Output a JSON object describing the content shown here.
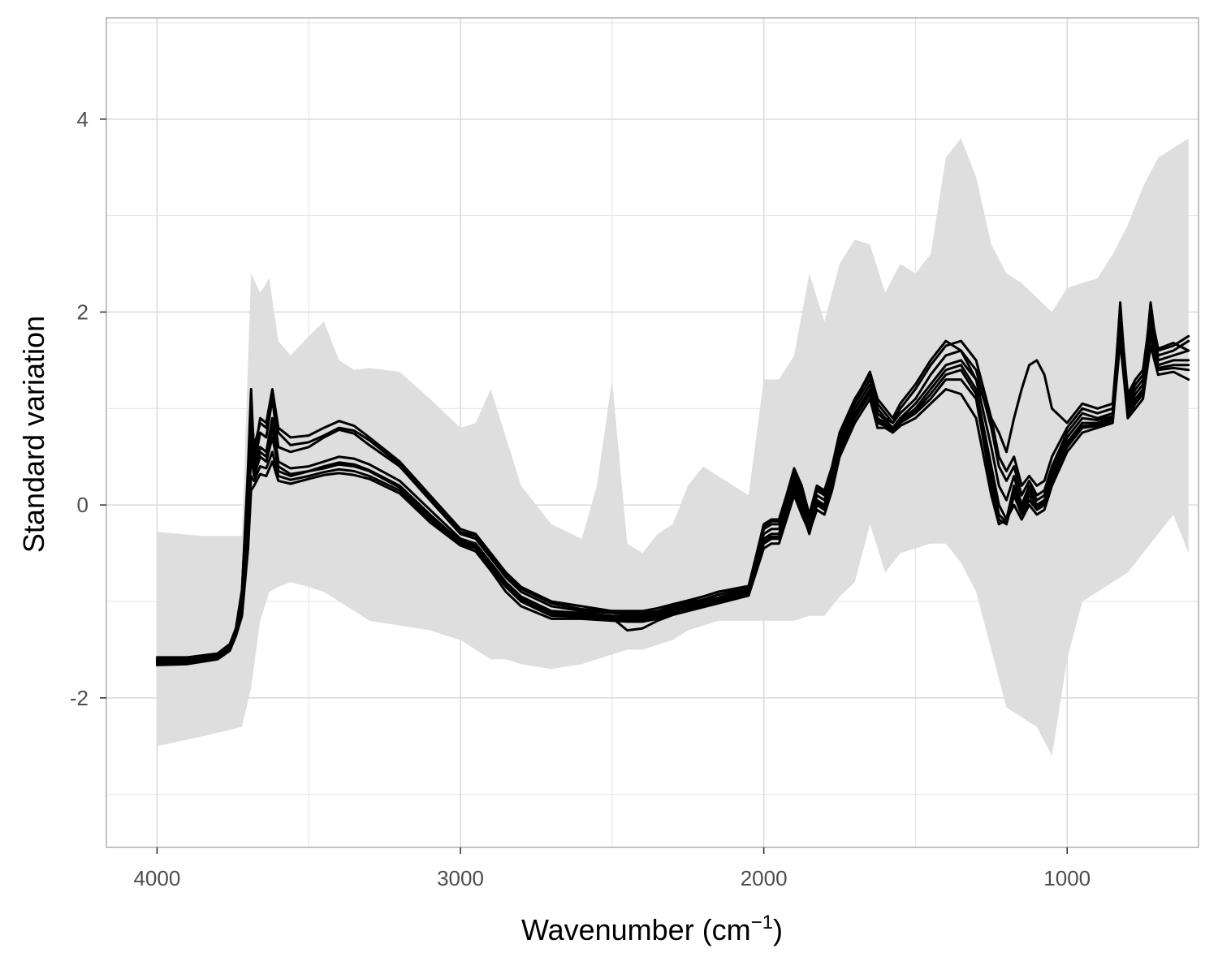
{
  "chart_data": {
    "type": "line",
    "title": "",
    "xlabel": "Wavenumber (cm",
    "xlabel_sup": "−1",
    "xlabel_end": ")",
    "ylabel": "Standard variation",
    "xlim": [
      4167,
      567
    ],
    "ylim": [
      -3.55,
      5.05
    ],
    "x_reversed": true,
    "x_ticks": [
      4000,
      3000,
      2000,
      1000
    ],
    "x_tick_labels": [
      "4000",
      "3000",
      "2000",
      "1000"
    ],
    "y_ticks": [
      4,
      2,
      0,
      -2
    ],
    "y_tick_labels": [
      "4",
      "2",
      "0",
      "-2"
    ],
    "grid": true,
    "colors": {
      "band": "#dedede",
      "line": "#000000",
      "grid": "#e5e5e5",
      "frame": "#b3b3b3"
    },
    "band": {
      "x": [
        4000,
        3850,
        3720,
        3690,
        3660,
        3630,
        3600,
        3560,
        3500,
        3450,
        3400,
        3350,
        3300,
        3200,
        3100,
        3000,
        2950,
        2900,
        2850,
        2800,
        2700,
        2600,
        2550,
        2500,
        2450,
        2400,
        2350,
        2300,
        2250,
        2200,
        2150,
        2100,
        2050,
        2000,
        1950,
        1900,
        1850,
        1800,
        1750,
        1700,
        1650,
        1600,
        1550,
        1500,
        1450,
        1400,
        1350,
        1300,
        1250,
        1200,
        1150,
        1100,
        1050,
        1000,
        950,
        900,
        850,
        800,
        750,
        700,
        650,
        600
      ],
      "upper": [
        -0.28,
        -0.32,
        -0.32,
        2.4,
        2.2,
        2.35,
        1.7,
        1.55,
        1.75,
        1.9,
        1.5,
        1.4,
        1.42,
        1.38,
        1.1,
        0.8,
        0.85,
        1.2,
        0.7,
        0.2,
        -0.2,
        -0.35,
        0.2,
        1.3,
        -0.4,
        -0.5,
        -0.3,
        -0.2,
        0.2,
        0.4,
        0.3,
        0.2,
        0.1,
        1.3,
        1.3,
        1.55,
        2.4,
        1.9,
        2.5,
        2.75,
        2.7,
        2.2,
        2.5,
        2.4,
        2.6,
        3.6,
        3.8,
        3.4,
        2.7,
        2.4,
        2.3,
        2.15,
        2.0,
        2.25,
        2.3,
        2.35,
        2.6,
        2.9,
        3.3,
        3.6,
        3.7,
        3.8
      ],
      "lower": [
        -2.5,
        -2.4,
        -2.3,
        -1.9,
        -1.2,
        -0.9,
        -0.85,
        -0.8,
        -0.85,
        -0.9,
        -1.0,
        -1.1,
        -1.2,
        -1.25,
        -1.3,
        -1.4,
        -1.5,
        -1.6,
        -1.6,
        -1.65,
        -1.7,
        -1.65,
        -1.6,
        -1.55,
        -1.5,
        -1.5,
        -1.45,
        -1.4,
        -1.3,
        -1.25,
        -1.2,
        -1.2,
        -1.2,
        -1.2,
        -1.2,
        -1.2,
        -1.15,
        -1.15,
        -0.95,
        -0.8,
        -0.2,
        -0.7,
        -0.5,
        -0.45,
        -0.4,
        -0.4,
        -0.6,
        -0.9,
        -1.5,
        -2.1,
        -2.2,
        -2.3,
        -2.6,
        -1.6,
        -1.0,
        -0.9,
        -0.8,
        -0.7,
        -0.5,
        -0.3,
        -0.1,
        -0.5
      ]
    },
    "x": [
      4000,
      3900,
      3800,
      3760,
      3740,
      3720,
      3700,
      3690,
      3680,
      3660,
      3640,
      3620,
      3600,
      3560,
      3500,
      3450,
      3400,
      3350,
      3300,
      3200,
      3100,
      3000,
      2950,
      2900,
      2850,
      2800,
      2700,
      2600,
      2500,
      2450,
      2400,
      2350,
      2300,
      2250,
      2200,
      2150,
      2100,
      2050,
      2000,
      1975,
      1950,
      1925,
      1900,
      1875,
      1850,
      1825,
      1800,
      1775,
      1750,
      1700,
      1650,
      1625,
      1600,
      1575,
      1550,
      1500,
      1450,
      1400,
      1350,
      1300,
      1250,
      1225,
      1200,
      1175,
      1150,
      1125,
      1100,
      1075,
      1050,
      1000,
      950,
      900,
      850,
      825,
      800,
      775,
      750,
      725,
      700,
      650,
      600
    ],
    "series": [
      {
        "values": [
          -1.6,
          -1.6,
          -1.55,
          -1.45,
          -1.3,
          -0.9,
          0.4,
          1.2,
          0.5,
          0.9,
          0.85,
          1.2,
          0.8,
          0.7,
          0.72,
          0.8,
          0.87,
          0.82,
          0.7,
          0.45,
          0.1,
          -0.25,
          -0.3,
          -0.5,
          -0.7,
          -0.85,
          -1.0,
          -1.05,
          -1.1,
          -1.12,
          -1.12,
          -1.1,
          -1.05,
          -1.0,
          -0.95,
          -0.9,
          -0.88,
          -0.85,
          -0.2,
          -0.15,
          -0.15,
          0.1,
          0.38,
          0.2,
          -0.1,
          0.2,
          0.15,
          0.4,
          0.75,
          1.1,
          1.35,
          1.05,
          0.95,
          0.85,
          1.0,
          1.2,
          1.45,
          1.65,
          1.7,
          1.5,
          0.9,
          0.5,
          0.35,
          0.5,
          0.2,
          0.3,
          0.2,
          0.25,
          0.5,
          0.8,
          1.0,
          0.95,
          1.0,
          1.7,
          1.1,
          1.25,
          1.35,
          1.8,
          1.6,
          1.65,
          1.75
        ]
      },
      {
        "values": [
          -1.62,
          -1.61,
          -1.56,
          -1.47,
          -1.32,
          -0.95,
          0.2,
          0.9,
          0.4,
          0.75,
          0.7,
          1.1,
          0.6,
          0.55,
          0.6,
          0.7,
          0.78,
          0.74,
          0.62,
          0.4,
          0.05,
          -0.3,
          -0.35,
          -0.55,
          -0.75,
          -0.9,
          -1.05,
          -1.1,
          -1.12,
          -1.13,
          -1.13,
          -1.1,
          -1.06,
          -1.02,
          -0.98,
          -0.93,
          -0.9,
          -0.87,
          -0.25,
          -0.2,
          -0.2,
          0.05,
          0.3,
          0.12,
          -0.15,
          0.15,
          0.1,
          0.35,
          0.7,
          1.05,
          1.3,
          1.0,
          0.9,
          0.85,
          0.95,
          1.1,
          1.35,
          1.55,
          1.6,
          1.4,
          0.8,
          0.4,
          0.25,
          0.4,
          0.1,
          0.25,
          0.1,
          0.15,
          0.4,
          0.75,
          0.95,
          0.9,
          0.95,
          1.9,
          1.05,
          1.2,
          1.3,
          1.95,
          1.55,
          1.6,
          1.7
        ]
      },
      {
        "values": [
          -1.63,
          -1.62,
          -1.57,
          -1.48,
          -1.33,
          -1.0,
          0.1,
          0.7,
          0.35,
          0.6,
          0.55,
          0.9,
          0.45,
          0.38,
          0.4,
          0.45,
          0.5,
          0.48,
          0.42,
          0.25,
          -0.05,
          -0.35,
          -0.4,
          -0.6,
          -0.8,
          -0.95,
          -1.1,
          -1.12,
          -1.15,
          -1.15,
          -1.15,
          -1.12,
          -1.08,
          -1.04,
          -1.0,
          -0.96,
          -0.92,
          -0.88,
          -0.3,
          -0.25,
          -0.25,
          0.0,
          0.25,
          0.05,
          -0.2,
          0.1,
          0.05,
          0.3,
          0.65,
          1.0,
          1.25,
          0.95,
          0.88,
          0.8,
          0.9,
          1.05,
          1.25,
          1.45,
          1.5,
          1.3,
          0.6,
          0.2,
          0.05,
          0.3,
          0.0,
          0.2,
          0.05,
          0.1,
          0.35,
          0.7,
          0.9,
          0.88,
          0.92,
          2.1,
          1.0,
          1.15,
          1.25,
          2.1,
          1.5,
          1.55,
          1.6
        ]
      },
      {
        "values": [
          -1.64,
          -1.63,
          -1.58,
          -1.49,
          -1.34,
          -1.05,
          -0.1,
          0.5,
          0.3,
          0.5,
          0.45,
          0.7,
          0.4,
          0.32,
          0.35,
          0.4,
          0.44,
          0.42,
          0.36,
          0.2,
          -0.1,
          -0.38,
          -0.42,
          -0.62,
          -0.82,
          -0.97,
          -1.12,
          -1.14,
          -1.16,
          -1.17,
          -1.17,
          -1.14,
          -1.1,
          -1.06,
          -1.02,
          -0.98,
          -0.94,
          -0.9,
          -0.35,
          -0.3,
          -0.3,
          -0.05,
          0.2,
          0.0,
          -0.25,
          0.05,
          0.0,
          0.25,
          0.6,
          0.95,
          1.2,
          0.9,
          0.85,
          0.78,
          0.88,
          1.0,
          1.2,
          1.4,
          1.45,
          1.2,
          0.4,
          0.0,
          -0.15,
          0.2,
          -0.05,
          0.15,
          0.0,
          0.05,
          0.3,
          0.65,
          0.85,
          0.85,
          0.9,
          1.95,
          0.95,
          1.1,
          1.2,
          1.9,
          1.45,
          1.5,
          1.5
        ]
      },
      {
        "values": [
          -1.65,
          -1.64,
          -1.59,
          -1.5,
          -1.35,
          -1.1,
          -0.3,
          0.3,
          0.25,
          0.4,
          0.38,
          0.55,
          0.3,
          0.26,
          0.3,
          0.34,
          0.37,
          0.35,
          0.3,
          0.15,
          -0.15,
          -0.4,
          -0.45,
          -0.65,
          -0.85,
          -1.0,
          -1.15,
          -1.16,
          -1.18,
          -1.19,
          -1.19,
          -1.16,
          -1.12,
          -1.08,
          -1.04,
          -1.0,
          -0.96,
          -0.92,
          -0.4,
          -0.35,
          -0.35,
          -0.1,
          0.15,
          -0.05,
          -0.3,
          0.0,
          -0.05,
          0.2,
          0.55,
          0.9,
          1.15,
          0.85,
          0.82,
          0.76,
          0.85,
          0.95,
          1.1,
          1.3,
          1.3,
          1.1,
          0.2,
          -0.15,
          -0.2,
          0.1,
          -0.1,
          0.05,
          -0.05,
          0.0,
          0.25,
          0.6,
          0.8,
          0.82,
          0.88,
          1.8,
          0.92,
          1.05,
          1.15,
          1.75,
          1.4,
          1.42,
          1.4
        ]
      },
      {
        "values": [
          -1.66,
          -1.65,
          -1.6,
          -1.51,
          -1.36,
          -1.15,
          -0.45,
          0.15,
          0.2,
          0.32,
          0.3,
          0.45,
          0.25,
          0.22,
          0.27,
          0.31,
          0.33,
          0.31,
          0.27,
          0.12,
          -0.18,
          -0.42,
          -0.48,
          -0.68,
          -0.9,
          -1.05,
          -1.18,
          -1.18,
          -1.2,
          -1.21,
          -1.21,
          -1.18,
          -1.14,
          -1.1,
          -1.06,
          -1.02,
          -0.98,
          -0.94,
          -0.45,
          -0.4,
          -0.4,
          -0.15,
          0.1,
          -0.1,
          -0.28,
          -0.05,
          -0.1,
          0.15,
          0.5,
          0.85,
          1.1,
          0.8,
          0.8,
          0.75,
          0.82,
          0.9,
          1.05,
          1.2,
          1.15,
          0.9,
          0.1,
          -0.2,
          -0.15,
          0.0,
          -0.15,
          0.0,
          -0.1,
          -0.05,
          0.2,
          0.55,
          0.75,
          0.8,
          0.85,
          1.7,
          0.9,
          1.0,
          1.1,
          1.65,
          1.35,
          1.38,
          1.3
        ]
      },
      {
        "values": [
          -1.58,
          -1.58,
          -1.54,
          -1.44,
          -1.28,
          -0.88,
          0.3,
          1.0,
          0.6,
          0.85,
          0.8,
          1.15,
          0.75,
          0.62,
          0.65,
          0.72,
          0.8,
          0.77,
          0.67,
          0.42,
          0.08,
          -0.28,
          -0.32,
          -0.52,
          -0.72,
          -0.87,
          -1.02,
          -1.08,
          -1.1,
          -1.1,
          -1.1,
          -1.07,
          -1.03,
          -0.99,
          -0.95,
          -0.9,
          -0.87,
          -0.84,
          -0.22,
          -0.17,
          -0.17,
          0.08,
          0.35,
          0.18,
          -0.12,
          0.18,
          0.12,
          0.38,
          0.72,
          1.08,
          1.38,
          1.1,
          1.0,
          0.9,
          1.05,
          1.25,
          1.5,
          1.7,
          1.6,
          1.3,
          0.9,
          0.75,
          0.55,
          0.9,
          1.2,
          1.45,
          1.5,
          1.35,
          1.0,
          0.85,
          1.05,
          1.0,
          1.05,
          2.0,
          1.15,
          1.3,
          1.4,
          2.0,
          1.62,
          1.68,
          1.6
        ]
      },
      {
        "values": [
          -1.61,
          -1.6,
          -1.56,
          -1.46,
          -1.31,
          -0.97,
          0.05,
          0.6,
          0.32,
          0.55,
          0.5,
          0.8,
          0.35,
          0.3,
          0.35,
          0.38,
          0.42,
          0.4,
          0.35,
          0.18,
          -0.12,
          -0.37,
          -0.44,
          -0.64,
          -0.84,
          -0.99,
          -1.14,
          -1.15,
          -1.17,
          -1.3,
          -1.28,
          -1.2,
          -1.14,
          -1.08,
          -1.03,
          -0.99,
          -0.95,
          -0.9,
          -0.38,
          -0.33,
          -0.33,
          -0.08,
          0.17,
          -0.02,
          -0.27,
          0.02,
          -0.02,
          0.22,
          0.57,
          0.92,
          1.17,
          0.87,
          0.83,
          0.77,
          0.86,
          0.97,
          1.15,
          1.35,
          1.4,
          1.15,
          0.3,
          -0.1,
          -0.18,
          0.15,
          -0.08,
          0.1,
          -0.02,
          0.02,
          0.28,
          0.62,
          0.82,
          0.83,
          0.89,
          1.85,
          0.93,
          1.07,
          1.17,
          1.8,
          1.42,
          1.45,
          1.45
        ]
      }
    ]
  }
}
